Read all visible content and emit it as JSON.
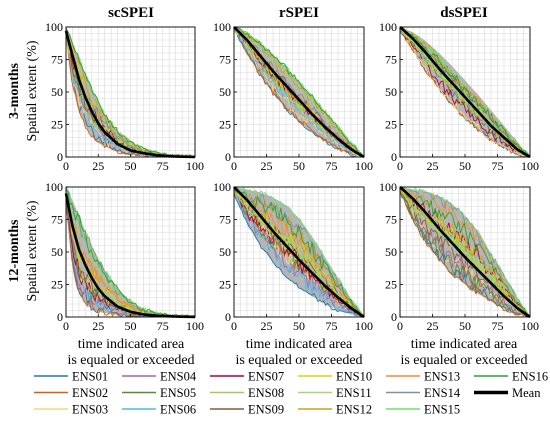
{
  "figure": {
    "column_titles": [
      "scSPEI",
      "rSPEI",
      "dsSPEI"
    ],
    "row_labels": [
      "3-months",
      "12-months"
    ],
    "y_axis_label": "Spatial extent (%)",
    "x_axis_label_lines": [
      "time indicated area",
      "is equaled or exceeded"
    ]
  },
  "legend": {
    "entries": [
      {
        "label": "ENS01",
        "color": "#1f77b4"
      },
      {
        "label": "ENS02",
        "color": "#d95f02"
      },
      {
        "label": "ENS03",
        "color": "#ffd37a"
      },
      {
        "label": "ENS04",
        "color": "#b15fa0"
      },
      {
        "label": "ENS05",
        "color": "#4f8f2f"
      },
      {
        "label": "ENS06",
        "color": "#4fb7e8"
      },
      {
        "label": "ENS07",
        "color": "#b0003a"
      },
      {
        "label": "ENS08",
        "color": "#9ccf52"
      },
      {
        "label": "ENS09",
        "color": "#8a5a3c"
      },
      {
        "label": "ENS10",
        "color": "#c8e000"
      },
      {
        "label": "ENS11",
        "color": "#a6d96a"
      },
      {
        "label": "ENS12",
        "color": "#d4a017"
      },
      {
        "label": "ENS13",
        "color": "#f28e2b"
      },
      {
        "label": "ENS14",
        "color": "#7f8fa6"
      },
      {
        "label": "ENS15",
        "color": "#6ee06e"
      },
      {
        "label": "ENS16",
        "color": "#2ca02c"
      },
      {
        "label": "Mean",
        "color": "#000000"
      }
    ]
  },
  "chart_data": [
    {
      "type": "line",
      "panel": "3-months scSPEI",
      "title": "scSPEI",
      "ylabel": "Spatial extent (%)",
      "xlim": [
        0,
        100
      ],
      "ylim": [
        0,
        100
      ],
      "xticks": [
        0,
        25,
        50,
        75,
        100
      ],
      "yticks": [
        0,
        25,
        50,
        75,
        100
      ],
      "grid": true,
      "mean": {
        "x": [
          0,
          5,
          10,
          15,
          20,
          25,
          30,
          40,
          50,
          60,
          70,
          80,
          90,
          100
        ],
        "y": [
          97,
          78,
          60,
          46,
          35,
          26,
          19,
          10,
          5,
          3,
          1.5,
          0.5,
          0.2,
          0
        ]
      },
      "envelope_lower": {
        "x": [
          0,
          5,
          10,
          15,
          20,
          25,
          30,
          40,
          50,
          60,
          70,
          80,
          100
        ],
        "y": [
          93,
          55,
          35,
          24,
          16,
          11,
          8,
          4,
          2,
          1,
          0.5,
          0.2,
          0
        ]
      },
      "envelope_upper": {
        "x": [
          0,
          5,
          10,
          15,
          20,
          25,
          30,
          40,
          50,
          60,
          70,
          80,
          100
        ],
        "y": [
          99,
          88,
          76,
          64,
          52,
          42,
          33,
          20,
          11,
          6,
          3,
          1,
          0
        ]
      }
    },
    {
      "type": "line",
      "panel": "3-months rSPEI",
      "title": "rSPEI",
      "xlim": [
        0,
        100
      ],
      "ylim": [
        0,
        100
      ],
      "xticks": [
        0,
        25,
        50,
        75,
        100
      ],
      "yticks": [
        0,
        25,
        50,
        75,
        100
      ],
      "grid": true,
      "mean": {
        "x": [
          0,
          10,
          20,
          30,
          40,
          50,
          60,
          70,
          80,
          90,
          100
        ],
        "y": [
          100,
          90,
          78,
          66,
          55,
          44,
          33,
          23,
          14,
          6,
          0
        ]
      },
      "envelope_lower": {
        "x": [
          0,
          10,
          20,
          30,
          40,
          50,
          60,
          70,
          80,
          90,
          100
        ],
        "y": [
          98,
          80,
          63,
          49,
          37,
          27,
          19,
          12,
          6,
          2,
          0
        ]
      },
      "envelope_upper": {
        "x": [
          0,
          10,
          20,
          30,
          40,
          50,
          60,
          70,
          80,
          90,
          100
        ],
        "y": [
          100,
          95,
          88,
          79,
          69,
          58,
          47,
          35,
          23,
          11,
          0
        ]
      }
    },
    {
      "type": "line",
      "panel": "3-months dsSPEI",
      "title": "dsSPEI",
      "xlim": [
        0,
        100
      ],
      "ylim": [
        0,
        100
      ],
      "xticks": [
        0,
        25,
        50,
        75,
        100
      ],
      "yticks": [
        0,
        25,
        50,
        75,
        100
      ],
      "grid": true,
      "mean": {
        "x": [
          0,
          10,
          20,
          30,
          40,
          50,
          60,
          70,
          80,
          90,
          100
        ],
        "y": [
          100,
          91,
          80,
          68,
          57,
          46,
          35,
          24,
          15,
          6,
          0
        ]
      },
      "envelope_lower": {
        "x": [
          0,
          10,
          20,
          30,
          40,
          50,
          60,
          70,
          80,
          90,
          100
        ],
        "y": [
          98,
          82,
          66,
          52,
          40,
          30,
          21,
          13,
          7,
          2,
          0
        ]
      },
      "envelope_upper": {
        "x": [
          0,
          10,
          20,
          30,
          40,
          50,
          60,
          70,
          80,
          90,
          100
        ],
        "y": [
          100,
          96,
          89,
          80,
          70,
          59,
          48,
          36,
          24,
          12,
          0
        ]
      }
    },
    {
      "type": "line",
      "panel": "12-months scSPEI",
      "title": "",
      "ylabel": "Spatial extent (%)",
      "xlim": [
        0,
        100
      ],
      "ylim": [
        0,
        100
      ],
      "xticks": [
        0,
        25,
        50,
        75,
        100
      ],
      "yticks": [
        0,
        25,
        50,
        75,
        100
      ],
      "grid": true,
      "mean": {
        "x": [
          0,
          5,
          10,
          15,
          20,
          25,
          30,
          40,
          50,
          60,
          70,
          80,
          90,
          100
        ],
        "y": [
          95,
          70,
          52,
          40,
          30,
          22,
          16,
          8,
          4,
          2,
          1,
          0.5,
          0.2,
          0
        ]
      },
      "envelope_lower": {
        "x": [
          0,
          5,
          10,
          15,
          20,
          25,
          30,
          40,
          50,
          60,
          70,
          100
        ],
        "y": [
          88,
          40,
          18,
          10,
          6,
          4,
          3,
          1.5,
          0.5,
          0.2,
          0,
          0
        ]
      },
      "envelope_upper": {
        "x": [
          0,
          5,
          10,
          15,
          20,
          25,
          30,
          40,
          50,
          60,
          70,
          80,
          100
        ],
        "y": [
          99,
          90,
          78,
          66,
          55,
          45,
          36,
          22,
          12,
          6,
          3,
          1,
          0
        ]
      }
    },
    {
      "type": "line",
      "panel": "12-months rSPEI",
      "title": "",
      "xlabel": "time indicated area is equaled or exceeded",
      "xlim": [
        0,
        100
      ],
      "ylim": [
        0,
        100
      ],
      "xticks": [
        0,
        25,
        50,
        75,
        100
      ],
      "yticks": [
        0,
        25,
        50,
        75,
        100
      ],
      "grid": true,
      "mean": {
        "x": [
          0,
          10,
          20,
          30,
          40,
          50,
          60,
          70,
          80,
          90,
          100
        ],
        "y": [
          100,
          90,
          78,
          66,
          55,
          44,
          34,
          24,
          15,
          7,
          0
        ]
      },
      "envelope_lower": {
        "x": [
          0,
          10,
          20,
          30,
          40,
          50,
          60,
          70,
          80,
          90,
          100
        ],
        "y": [
          95,
          72,
          55,
          42,
          31,
          23,
          16,
          10,
          5,
          2,
          0
        ]
      },
      "envelope_upper": {
        "x": [
          0,
          10,
          20,
          30,
          40,
          50,
          60,
          70,
          80,
          90,
          100
        ],
        "y": [
          100,
          98,
          96,
          92,
          86,
          76,
          62,
          46,
          30,
          14,
          0
        ]
      }
    },
    {
      "type": "line",
      "panel": "12-months dsSPEI",
      "title": "",
      "xlabel": "time indicated area is equaled or exceeded",
      "xlim": [
        0,
        100
      ],
      "ylim": [
        0,
        100
      ],
      "xticks": [
        0,
        25,
        50,
        75,
        100
      ],
      "yticks": [
        0,
        25,
        50,
        75,
        100
      ],
      "grid": true,
      "mean": {
        "x": [
          0,
          10,
          20,
          30,
          40,
          50,
          60,
          70,
          80,
          90,
          100
        ],
        "y": [
          100,
          91,
          80,
          68,
          57,
          46,
          36,
          26,
          16,
          7,
          0
        ]
      },
      "envelope_lower": {
        "x": [
          0,
          10,
          20,
          30,
          40,
          50,
          60,
          70,
          80,
          90,
          100
        ],
        "y": [
          96,
          74,
          57,
          44,
          33,
          25,
          18,
          12,
          6,
          2,
          0
        ]
      },
      "envelope_upper": {
        "x": [
          0,
          10,
          20,
          30,
          40,
          50,
          60,
          70,
          80,
          90,
          100
        ],
        "y": [
          100,
          98,
          96,
          93,
          87,
          78,
          65,
          49,
          32,
          15,
          0
        ]
      }
    }
  ]
}
